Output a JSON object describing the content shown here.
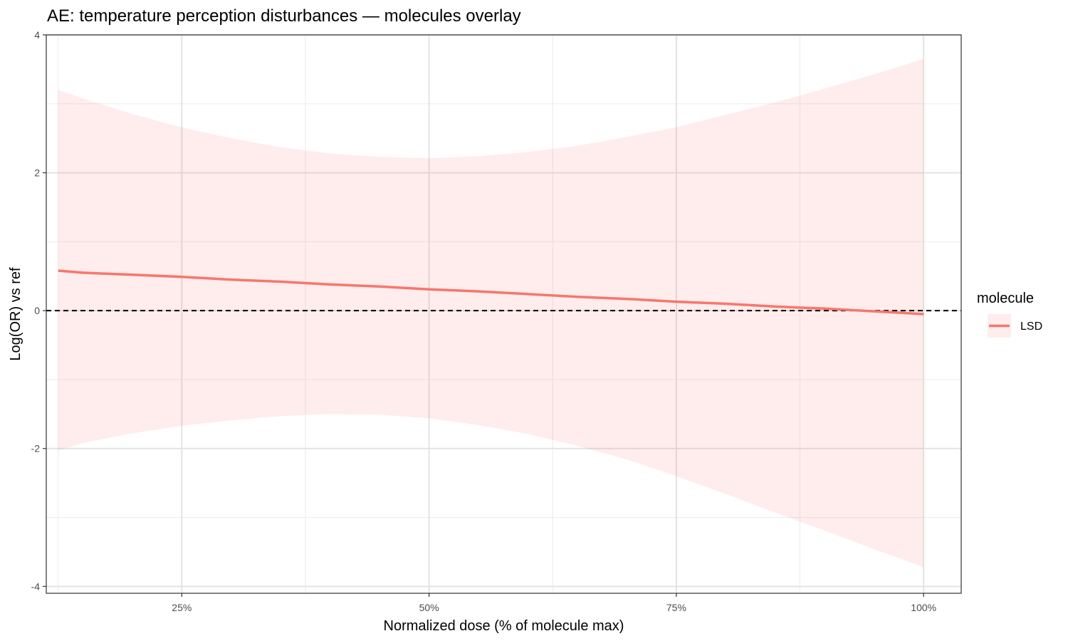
{
  "chart_data": {
    "type": "line",
    "title": "AE: temperature perception disturbances — molecules overlay",
    "xlabel": "Normalized dose (% of molecule max)",
    "ylabel": "Log(OR) vs ref",
    "xlim": [
      11.3,
      103.8
    ],
    "ylim": [
      -4.1,
      4.0
    ],
    "x_ticks": [
      25,
      50,
      75,
      100
    ],
    "x_tick_labels": [
      "25%",
      "50%",
      "75%",
      "100%"
    ],
    "x_minor": [
      12.5,
      37.5,
      62.5,
      87.5
    ],
    "y_ticks": [
      -4,
      -2,
      0,
      2,
      4
    ],
    "y_tick_labels": [
      "-4",
      "-2",
      "0",
      "2",
      "4"
    ],
    "y_minor": [
      -3,
      -1,
      1,
      3
    ],
    "grid": true,
    "reference_line": {
      "y": 0,
      "style": "dashed",
      "color": "#000000"
    },
    "legend": {
      "title": "molecule",
      "position": "right"
    },
    "series": [
      {
        "name": "LSD",
        "color": "#F8766D",
        "ribbon_color": "#F8766D",
        "x": [
          12.5,
          15,
          20,
          25,
          30,
          35,
          40,
          45,
          50,
          55,
          60,
          65,
          70,
          75,
          80,
          85,
          90,
          95,
          100
        ],
        "y": [
          0.58,
          0.55,
          0.52,
          0.49,
          0.45,
          0.42,
          0.38,
          0.35,
          0.31,
          0.28,
          0.24,
          0.2,
          0.17,
          0.13,
          0.1,
          0.06,
          0.03,
          -0.01,
          -0.05
        ],
        "lower": [
          -2.03,
          -1.92,
          -1.78,
          -1.67,
          -1.59,
          -1.53,
          -1.5,
          -1.51,
          -1.56,
          -1.66,
          -1.79,
          -1.96,
          -2.16,
          -2.4,
          -2.66,
          -2.93,
          -3.19,
          -3.46,
          -3.72
        ],
        "upper": [
          3.2,
          3.08,
          2.85,
          2.66,
          2.5,
          2.37,
          2.28,
          2.23,
          2.21,
          2.24,
          2.3,
          2.39,
          2.52,
          2.66,
          2.84,
          3.02,
          3.22,
          3.43,
          3.65
        ]
      }
    ]
  }
}
